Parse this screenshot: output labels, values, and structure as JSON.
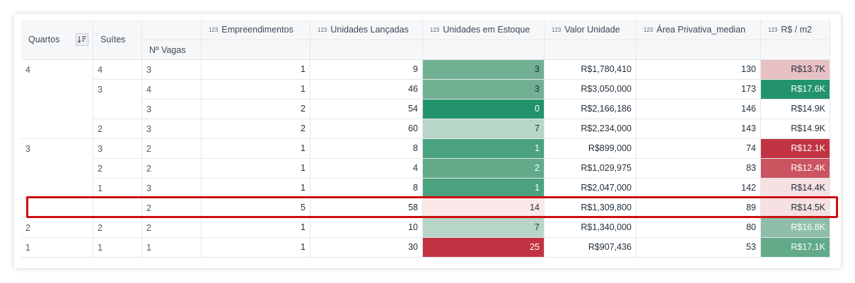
{
  "headers": {
    "quartos": "Quartos",
    "suites": "Suítes",
    "vagas": "Nº Vagas",
    "type_badge": "123",
    "empreendimentos": "Empreendimentos",
    "unidades_lancadas": "Unidades Lançadas",
    "unidades_estoque": "Unidades em Estoque",
    "valor_unidade": "Valor Unidade",
    "area_privativa": "Área Privativa_median",
    "rs_m2": "R$ / m2"
  },
  "groups": {
    "quartos": [
      "4",
      "3",
      "2",
      "1"
    ],
    "suites": [
      "4",
      "3",
      "2",
      "3",
      "2",
      "1",
      "2",
      "1"
    ]
  },
  "rows": [
    {
      "vagas": "3",
      "emp": "1",
      "lanc": "9",
      "estoque": "3",
      "valor": "R$1,780,410",
      "area": "130",
      "m2": "R$13.7K"
    },
    {
      "vagas": "4",
      "emp": "1",
      "lanc": "46",
      "estoque": "3",
      "valor": "R$3,050,000",
      "area": "173",
      "m2": "R$17.6K"
    },
    {
      "vagas": "3",
      "emp": "2",
      "lanc": "54",
      "estoque": "0",
      "valor": "R$2,166,186",
      "area": "146",
      "m2": "R$14.9K"
    },
    {
      "vagas": "3",
      "emp": "2",
      "lanc": "60",
      "estoque": "7",
      "valor": "R$2,234,000",
      "area": "143",
      "m2": "R$14.9K"
    },
    {
      "vagas": "2",
      "emp": "1",
      "lanc": "8",
      "estoque": "1",
      "valor": "R$899,000",
      "area": "74",
      "m2": "R$12.1K"
    },
    {
      "vagas": "2",
      "emp": "1",
      "lanc": "4",
      "estoque": "2",
      "valor": "R$1,029,975",
      "area": "83",
      "m2": "R$12.4K"
    },
    {
      "vagas": "3",
      "emp": "1",
      "lanc": "8",
      "estoque": "1",
      "valor": "R$2,047,000",
      "area": "142",
      "m2": "R$14.4K"
    },
    {
      "vagas": "2",
      "emp": "5",
      "lanc": "58",
      "estoque": "14",
      "valor": "R$1,309,800",
      "area": "89",
      "m2": "R$14.5K"
    },
    {
      "vagas": "2",
      "emp": "1",
      "lanc": "10",
      "estoque": "7",
      "valor": "R$1,340,000",
      "area": "80",
      "m2": "R$16.8K"
    },
    {
      "vagas": "1",
      "emp": "1",
      "lanc": "30",
      "estoque": "25",
      "valor": "R$907,436",
      "area": "53",
      "m2": "R$17.1K"
    }
  ],
  "colors": {
    "estoque": [
      "#72b094",
      "#72b094",
      "#22936a",
      "#b7d6c8",
      "#4aa27f",
      "#62aa8a",
      "#4aa27f",
      "#fbe8e9",
      "#b7d6c8",
      "#c13342"
    ],
    "m2": [
      "#e7c0c4",
      "#22936a",
      "#ffffff",
      "#ffffff",
      "#c13342",
      "#ca5560",
      "#f6e0e2",
      "#f6e0e2",
      "#8fbfa9",
      "#62aa8a"
    ],
    "estoque_text_light": [
      false,
      false,
      true,
      false,
      true,
      true,
      true,
      false,
      false,
      true
    ],
    "m2_text_light": [
      false,
      true,
      false,
      false,
      true,
      true,
      false,
      false,
      true,
      true
    ]
  }
}
